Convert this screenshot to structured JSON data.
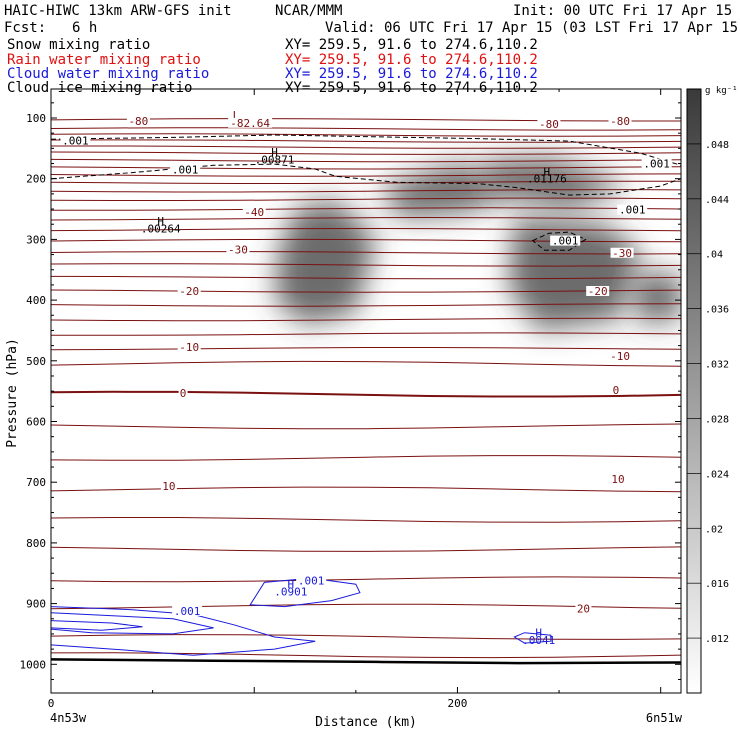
{
  "header": {
    "model": "HAIC-HIWC 13km ARW-GFS init",
    "org": "NCAR/MMM",
    "init": "Init: 00 UTC Fri 17 Apr 15",
    "fcst_label": "Fcst:",
    "fcst_value": "6 h",
    "valid": "Valid: 06 UTC Fri 17 Apr 15 (03 LST Fri 17 Apr 15)"
  },
  "fields": [
    {
      "name": "Snow mixing ratio",
      "xy": "XY= 259.5, 91.6 to 274.6,110.2",
      "color": "#000000"
    },
    {
      "name": "Rain water mixing ratio",
      "xy": "XY= 259.5, 91.6 to 274.6,110.2",
      "color": "#e01010"
    },
    {
      "name": "Cloud water mixing ratio",
      "xy": "XY= 259.5, 91.6 to 274.6,110.2",
      "color": "#1a1adc"
    },
    {
      "name": "Cloud ice mixing ratio",
      "xy": "XY= 259.5, 91.6 to 274.6,110.2",
      "color": "#000000"
    }
  ],
  "chart_data": {
    "type": "cross-section",
    "ylabel": "Pressure (hPa)",
    "xlabel": "Distance (km)",
    "x_left_label": "4n53w",
    "x_right_label": "6n51w",
    "xlim": [
      0,
      310
    ],
    "ylim": [
      1050,
      60
    ],
    "x_ticks": [
      0,
      200
    ],
    "y_ticks": [
      100,
      200,
      300,
      400,
      500,
      600,
      700,
      800,
      900,
      1000
    ],
    "colorbar": {
      "units": "g kg⁻¹",
      "ticks": [
        0.012,
        0.016,
        0.02,
        0.024,
        0.028,
        0.032,
        0.036,
        0.04,
        0.044,
        0.048
      ],
      "range": [
        0.008,
        0.052
      ]
    },
    "temperature_labels": [
      {
        "text": "-80",
        "x": 43,
        "p": 105
      },
      {
        "text": "-80",
        "x": 245,
        "p": 110
      },
      {
        "text": "-80",
        "x": 280,
        "p": 105
      },
      {
        "text": "-40",
        "x": 100,
        "p": 255
      },
      {
        "text": "-30",
        "x": 92,
        "p": 317
      },
      {
        "text": "-30",
        "x": 281,
        "p": 322
      },
      {
        "text": "-20",
        "x": 68,
        "p": 385
      },
      {
        "text": "-20",
        "x": 269,
        "p": 385
      },
      {
        "text": "-10",
        "x": 68,
        "p": 477
      },
      {
        "text": "-10",
        "x": 280,
        "p": 492
      },
      {
        "text": "0",
        "x": 65,
        "p": 553
      },
      {
        "text": "0",
        "x": 278,
        "p": 548
      },
      {
        "text": "10",
        "x": 58,
        "p": 706
      },
      {
        "text": "10",
        "x": 279,
        "p": 695
      },
      {
        "text": "20",
        "x": 262,
        "p": 908
      }
    ],
    "temperature_extrema": [
      {
        "kind": "L",
        "value": "-82.64",
        "x": 92,
        "p": 105
      }
    ],
    "ice_contours": [
      {
        "text": ".001",
        "x": 12,
        "p": 137
      },
      {
        "text": ".001",
        "x": 66,
        "p": 185
      },
      {
        "text": ".001",
        "x": 298,
        "p": 175
      },
      {
        "text": ".001",
        "x": 286,
        "p": 251
      },
      {
        "text": ".001",
        "x": 253,
        "p": 302
      }
    ],
    "ice_extrema": [
      {
        "kind": "H",
        "value": ".00871",
        "x": 110,
        "p": 168
      },
      {
        "kind": "H",
        "value": ".01176",
        "x": 244,
        "p": 200
      },
      {
        "kind": "H",
        "value": ".00264",
        "x": 54,
        "p": 282
      }
    ],
    "cloud_water_contours": [
      {
        "text": ".001",
        "x": 67,
        "p": 912
      },
      {
        "text": ".001",
        "x": 128,
        "p": 862
      }
    ],
    "cloud_water_extrema": [
      {
        "kind": "H",
        "value": ".0901",
        "x": 118,
        "p": 880
      },
      {
        "kind": "H",
        "value": ".0041",
        "x": 240,
        "p": 960
      }
    ],
    "snow_maxima": [
      {
        "x": 133,
        "p": 380,
        "value": 0.048
      },
      {
        "x": 181,
        "p": 240,
        "value": 0.03
      },
      {
        "x": 231,
        "p": 210,
        "value": 0.042
      },
      {
        "x": 254,
        "p": 385,
        "value": 0.05
      },
      {
        "x": 303,
        "p": 395,
        "value": 0.05
      }
    ]
  }
}
